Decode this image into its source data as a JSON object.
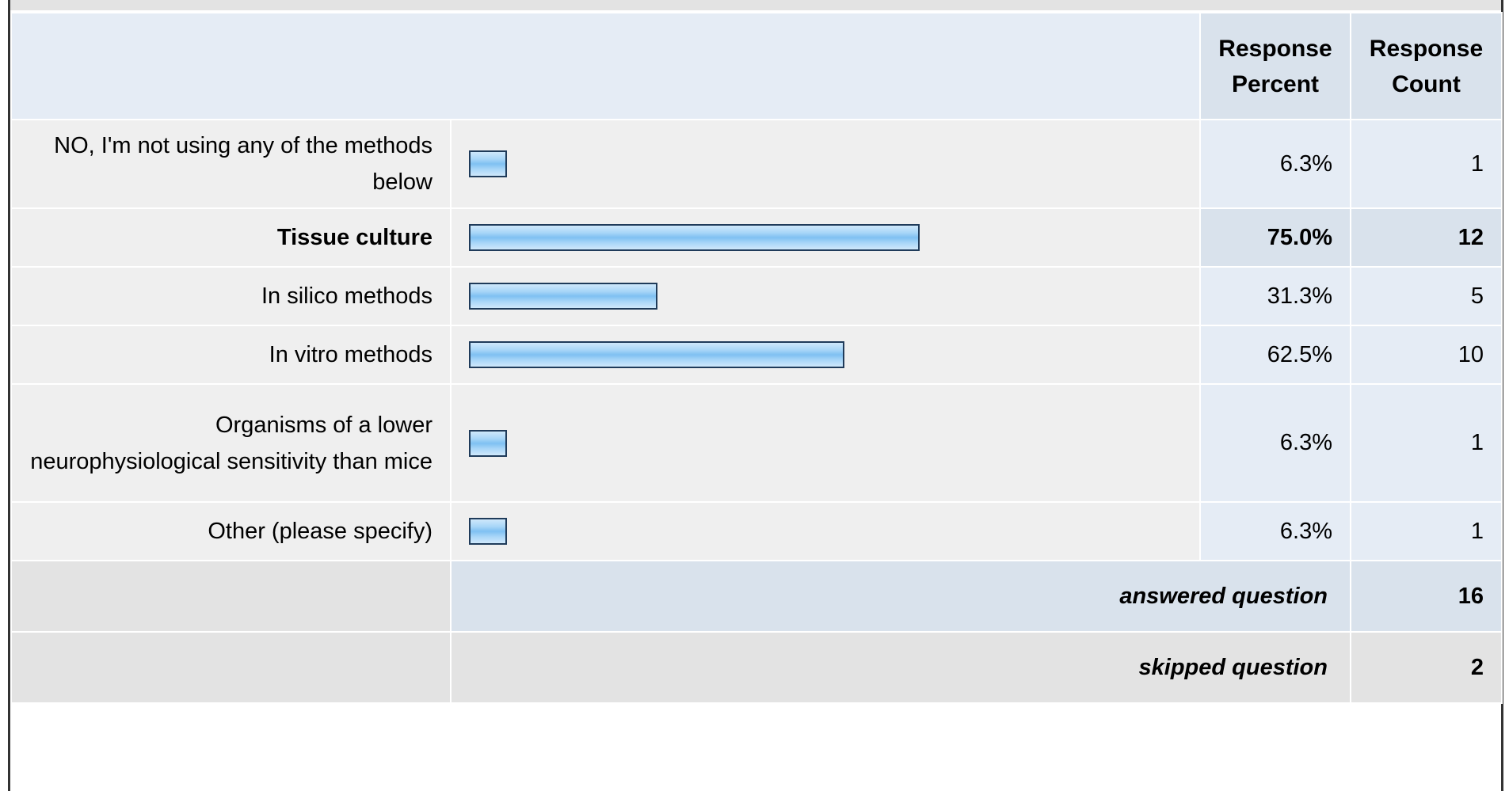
{
  "table": {
    "header": {
      "percent": "Response Percent",
      "count": "Response Count"
    }
  },
  "chart_data": {
    "type": "bar",
    "orientation": "horizontal",
    "xlim": [
      0,
      100
    ],
    "categories": [
      "NO, I'm not using any of the methods below",
      "Tissue culture",
      "In silico methods",
      "In vitro methods",
      "Organisms of a lower neurophysiological sensitivity than mice",
      "Other (please specify)"
    ],
    "values": [
      6.3,
      75.0,
      31.3,
      62.5,
      6.3,
      6.3
    ],
    "percent_labels": [
      "6.3%",
      "75.0%",
      "31.3%",
      "62.5%",
      "6.3%",
      "6.3%"
    ],
    "counts": [
      "1",
      "12",
      "5",
      "10",
      "1",
      "1"
    ],
    "highlighted_index": 1,
    "bar_color": "#a8d6f8",
    "bar_border_color": "#1f3b5a"
  },
  "footer": {
    "answered_label": "answered question",
    "answered_value": "16",
    "skipped_label": "skipped question",
    "skipped_value": "2"
  }
}
